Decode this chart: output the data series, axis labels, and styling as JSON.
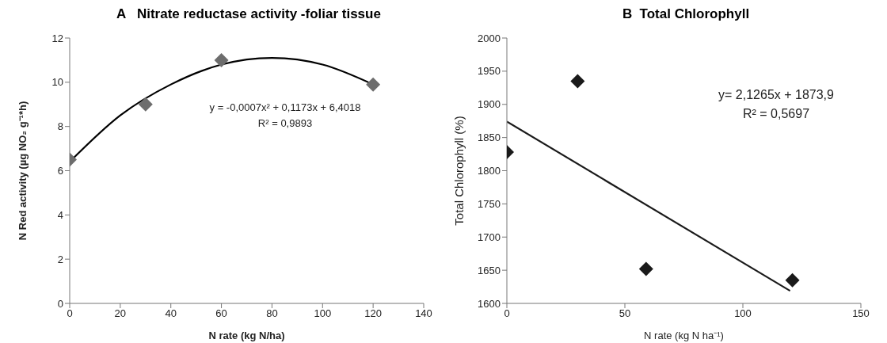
{
  "chart_data": [
    {
      "type": "scatter",
      "title": "A   Nitrate reductase activity -foliar tissue",
      "xlabel": "N rate (kg N/ha)",
      "ylabel": "N Red activity  (µg NO₂ g⁻¹*h)",
      "xlim": [
        0,
        140
      ],
      "xticks": [
        0,
        20,
        40,
        60,
        80,
        100,
        120,
        140
      ],
      "ylim": [
        0,
        12
      ],
      "yticks": [
        0,
        2,
        4,
        6,
        8,
        10,
        12
      ],
      "grid": false,
      "annotations": [
        "y = -0,0007x² + 0,1173x + 6,4018",
        "R² = 0,9893"
      ],
      "series": [
        {
          "type": "scatter",
          "color": "#6d6d6d",
          "marker": "diamond",
          "x": [
            0,
            30,
            60,
            120
          ],
          "values": [
            6.5,
            9.0,
            11.0,
            9.9
          ]
        },
        {
          "type": "line",
          "color": "#000000",
          "marker": "none",
          "line_style": "solid",
          "x": [
            0,
            20,
            40,
            60,
            80,
            100,
            120
          ],
          "values": [
            6.4,
            8.5,
            9.9,
            10.8,
            11.1,
            10.8,
            9.9
          ]
        }
      ]
    },
    {
      "type": "scatter",
      "title": "B  Total Chlorophyll",
      "xlabel": "N rate (kg N ha⁻¹)",
      "ylabel": "Total Chlorophyll (%)",
      "xlim": [
        0,
        150
      ],
      "xticks": [
        0,
        50,
        100,
        150
      ],
      "ylim": [
        1600,
        2000
      ],
      "yticks": [
        1600,
        1650,
        1700,
        1750,
        1800,
        1850,
        1900,
        1950,
        2000
      ],
      "grid": false,
      "annotations": [
        "y= 2,1265x + 1873,9",
        "R² = 0,5697"
      ],
      "series": [
        {
          "type": "scatter",
          "color": "#1a1a1a",
          "marker": "diamond",
          "x": [
            0,
            30,
            59,
            121
          ],
          "values": [
            1828,
            1935,
            1652,
            1635
          ]
        },
        {
          "type": "line",
          "color": "#1a1a1a",
          "marker": "none",
          "line_style": "solid",
          "x": [
            0,
            120
          ],
          "values": [
            1874,
            1619
          ]
        }
      ]
    }
  ]
}
